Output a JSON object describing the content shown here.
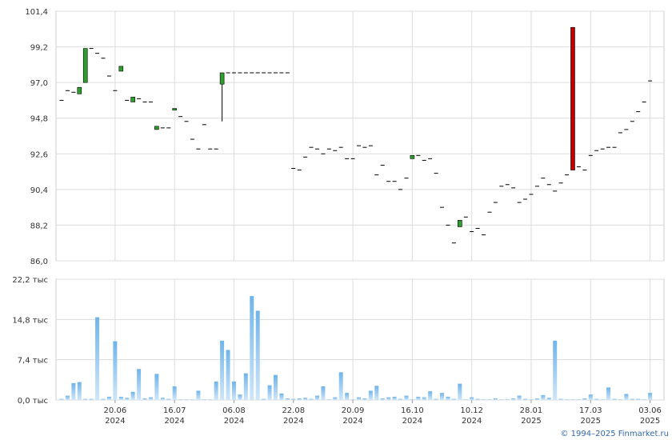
{
  "chart_data": [
    {
      "type": "candlestick",
      "open": [
        95.9,
        96.5,
        96.4,
        96.3,
        97.0,
        99.1,
        98.8,
        98.5,
        97.4,
        96.5,
        97.7,
        95.9,
        95.8,
        96.0,
        95.8,
        95.8,
        94.1,
        94.2,
        94.2,
        95.3,
        94.9,
        94.6,
        93.5,
        92.9,
        94.4,
        92.9,
        92.9,
        96.9,
        97.6,
        97.6,
        97.6,
        97.6,
        97.6,
        97.6,
        97.6,
        97.6,
        97.6,
        97.6,
        97.6,
        91.7,
        91.6,
        92.4,
        93.0,
        92.9,
        92.6,
        92.9,
        92.8,
        93.0,
        92.3,
        92.3,
        93.1,
        93.0,
        93.1,
        91.3,
        91.9,
        90.9,
        90.9,
        90.4,
        91.1,
        92.3,
        92.5,
        92.2,
        92.3,
        91.4,
        89.3,
        88.2,
        87.1,
        88.1,
        88.7,
        87.8,
        88.0,
        87.6,
        89.0,
        89.6,
        90.6,
        90.7,
        90.5,
        89.6,
        89.8,
        90.1,
        90.6,
        91.1,
        90.7,
        90.3,
        90.8,
        91.3,
        100.4,
        91.8,
        91.6,
        92.5,
        92.8,
        92.9,
        93.0,
        93.0,
        93.9,
        94.1,
        94.6,
        95.2,
        95.8,
        97.1
      ],
      "high": [
        95.9,
        96.5,
        96.4,
        96.7,
        99.1,
        99.1,
        98.8,
        98.5,
        97.4,
        96.5,
        98.0,
        95.9,
        96.1,
        96.0,
        95.8,
        95.8,
        94.3,
        94.2,
        94.2,
        95.4,
        94.9,
        94.6,
        93.5,
        92.9,
        94.4,
        92.9,
        92.9,
        97.6,
        97.6,
        97.6,
        97.6,
        97.6,
        97.6,
        97.6,
        97.6,
        97.6,
        97.6,
        97.6,
        97.6,
        91.7,
        91.6,
        92.4,
        93.0,
        92.9,
        92.6,
        92.9,
        92.8,
        93.0,
        92.3,
        92.3,
        93.1,
        93.0,
        93.1,
        91.3,
        91.9,
        90.9,
        90.9,
        90.4,
        91.1,
        92.5,
        92.5,
        92.2,
        92.3,
        91.4,
        89.3,
        88.2,
        87.1,
        88.5,
        88.7,
        87.8,
        88.0,
        87.6,
        89.0,
        89.6,
        90.6,
        90.7,
        90.5,
        89.6,
        89.8,
        90.1,
        90.6,
        91.1,
        90.7,
        90.3,
        90.8,
        91.3,
        100.4,
        91.8,
        91.6,
        92.5,
        92.8,
        92.9,
        93.0,
        93.0,
        93.9,
        94.1,
        94.6,
        95.2,
        95.8,
        97.1
      ],
      "low": [
        95.9,
        96.5,
        96.4,
        96.3,
        97.0,
        99.1,
        98.8,
        98.5,
        97.4,
        96.5,
        97.7,
        95.9,
        95.8,
        96.0,
        95.8,
        95.8,
        94.1,
        94.2,
        94.2,
        95.3,
        94.9,
        94.6,
        93.5,
        92.9,
        94.4,
        92.9,
        92.9,
        94.6,
        97.6,
        97.6,
        97.6,
        97.6,
        97.6,
        97.6,
        97.6,
        97.6,
        97.6,
        97.6,
        97.6,
        91.7,
        91.6,
        92.4,
        93.0,
        92.9,
        92.6,
        92.9,
        92.8,
        93.0,
        92.3,
        92.3,
        93.1,
        93.0,
        93.1,
        91.3,
        91.9,
        90.9,
        90.9,
        90.4,
        91.1,
        92.3,
        92.5,
        92.2,
        92.3,
        91.4,
        89.3,
        88.2,
        87.1,
        88.1,
        88.7,
        87.8,
        88.0,
        87.6,
        89.0,
        89.6,
        90.6,
        90.7,
        90.5,
        89.6,
        89.8,
        90.1,
        90.6,
        91.1,
        90.7,
        90.3,
        90.8,
        91.3,
        91.6,
        91.8,
        91.6,
        92.5,
        92.8,
        92.9,
        93.0,
        93.0,
        93.9,
        94.1,
        94.6,
        95.2,
        95.8,
        97.1
      ],
      "close": [
        95.9,
        96.5,
        96.4,
        96.7,
        99.1,
        99.1,
        98.8,
        98.5,
        97.4,
        96.5,
        98.0,
        95.9,
        96.1,
        96.0,
        95.8,
        95.8,
        94.3,
        94.2,
        94.2,
        95.4,
        94.9,
        94.6,
        93.5,
        92.9,
        94.4,
        92.9,
        92.9,
        97.6,
        97.6,
        97.6,
        97.6,
        97.6,
        97.6,
        97.6,
        97.6,
        97.6,
        97.6,
        97.6,
        97.6,
        91.7,
        91.6,
        92.4,
        93.0,
        92.9,
        92.6,
        92.9,
        92.8,
        93.0,
        92.3,
        92.3,
        93.1,
        93.0,
        93.1,
        91.3,
        91.9,
        90.9,
        90.9,
        90.4,
        91.1,
        92.5,
        92.5,
        92.2,
        92.3,
        91.4,
        89.3,
        88.2,
        87.1,
        88.5,
        88.7,
        87.8,
        88.0,
        87.6,
        89.0,
        89.6,
        90.6,
        90.7,
        90.5,
        89.6,
        89.8,
        90.1,
        90.6,
        91.1,
        90.7,
        90.3,
        90.8,
        91.3,
        91.6,
        91.8,
        91.6,
        92.5,
        92.8,
        92.9,
        93.0,
        93.0,
        93.9,
        94.1,
        94.6,
        95.2,
        95.8,
        97.1
      ],
      "up_color": "#2e9e2e",
      "down_color": "#c00000",
      "flat_color": "#000000",
      "ylim": [
        86.0,
        101.4
      ],
      "yticks": [
        {
          "value": 86.0,
          "label": "86,0"
        },
        {
          "value": 88.2,
          "label": "88,2"
        },
        {
          "value": 90.4,
          "label": "90,4"
        },
        {
          "value": 92.6,
          "label": "92,6"
        },
        {
          "value": 94.8,
          "label": "94,8"
        },
        {
          "value": 97.0,
          "label": "97,0"
        },
        {
          "value": 99.2,
          "label": "99,2"
        },
        {
          "value": 101.4,
          "label": "101,4"
        }
      ],
      "grid": true
    },
    {
      "type": "bar",
      "categories": [
        null,
        null,
        null,
        null,
        null,
        null,
        null,
        null,
        null,
        "20.06",
        null,
        null,
        null,
        null,
        null,
        null,
        null,
        null,
        null,
        "16.07",
        null,
        null,
        null,
        null,
        null,
        null,
        null,
        null,
        null,
        "06.08",
        null,
        null,
        null,
        null,
        null,
        null,
        null,
        null,
        null,
        "22.08",
        null,
        null,
        null,
        null,
        null,
        null,
        null,
        null,
        null,
        "20.09",
        null,
        null,
        null,
        null,
        null,
        null,
        null,
        null,
        null,
        "16.10",
        null,
        null,
        null,
        null,
        null,
        null,
        null,
        null,
        null,
        "10.12",
        null,
        null,
        null,
        null,
        null,
        null,
        null,
        null,
        null,
        "28.01",
        null,
        null,
        null,
        null,
        null,
        null,
        null,
        null,
        null,
        "17.03",
        null,
        null,
        null,
        null,
        null,
        null,
        null,
        null,
        null,
        "03.06"
      ],
      "category_years": [
        null,
        null,
        null,
        null,
        null,
        null,
        null,
        null,
        null,
        "2024",
        null,
        null,
        null,
        null,
        null,
        null,
        null,
        null,
        null,
        "2024",
        null,
        null,
        null,
        null,
        null,
        null,
        null,
        null,
        null,
        "2024",
        null,
        null,
        null,
        null,
        null,
        null,
        null,
        null,
        null,
        "2024",
        null,
        null,
        null,
        null,
        null,
        null,
        null,
        null,
        null,
        "2024",
        null,
        null,
        null,
        null,
        null,
        null,
        null,
        null,
        null,
        "2024",
        null,
        null,
        null,
        null,
        null,
        null,
        null,
        null,
        null,
        "2024",
        null,
        null,
        null,
        null,
        null,
        null,
        null,
        null,
        null,
        "2025",
        null,
        null,
        null,
        null,
        null,
        null,
        null,
        null,
        null,
        "2025",
        null,
        null,
        null,
        null,
        null,
        null,
        null,
        null,
        null,
        "2025"
      ],
      "values": [
        0.2,
        0.8,
        3.1,
        3.3,
        0.2,
        0.2,
        15.2,
        0.2,
        0.6,
        10.8,
        0.6,
        0.4,
        1.5,
        5.7,
        0.3,
        0.5,
        4.8,
        0.4,
        0.2,
        2.5,
        0.1,
        0.1,
        0.1,
        1.7,
        0.1,
        0.1,
        3.4,
        10.9,
        9.2,
        3.4,
        1.0,
        4.9,
        19.1,
        16.4,
        0.2,
        2.7,
        4.6,
        1.2,
        0.3,
        0.2,
        0.3,
        0.4,
        0.2,
        0.8,
        2.5,
        0.1,
        0.5,
        5.1,
        1.3,
        0.1,
        0.5,
        0.3,
        1.7,
        2.6,
        0.3,
        0.5,
        0.6,
        0.2,
        0.8,
        0.1,
        0.6,
        0.5,
        1.6,
        0.2,
        1.3,
        0.6,
        0.2,
        3.0,
        0.1,
        0.5,
        0.2,
        0.1,
        0.1,
        0.3,
        0.1,
        0.1,
        0.3,
        0.8,
        0.2,
        0.1,
        0.3,
        0.9,
        0.4,
        10.9,
        0.2,
        0.1,
        0.1,
        0.1,
        0.3,
        1.0,
        0.2,
        0.1,
        2.3,
        0.2,
        0.1,
        1.1,
        0.2,
        0.2,
        0.1,
        1.3
      ],
      "color": "#7dbdee",
      "ylim": [
        0,
        22.2
      ],
      "yticks": [
        {
          "value": 0,
          "label": "0,0 тыс"
        },
        {
          "value": 7.4,
          "label": "7,4 тыс"
        },
        {
          "value": 14.8,
          "label": "14,8 тыс"
        },
        {
          "value": 22.2,
          "label": "22,2 тыс"
        }
      ],
      "grid": true
    }
  ],
  "footer": "© 1994–2025 Finmarket.ru"
}
